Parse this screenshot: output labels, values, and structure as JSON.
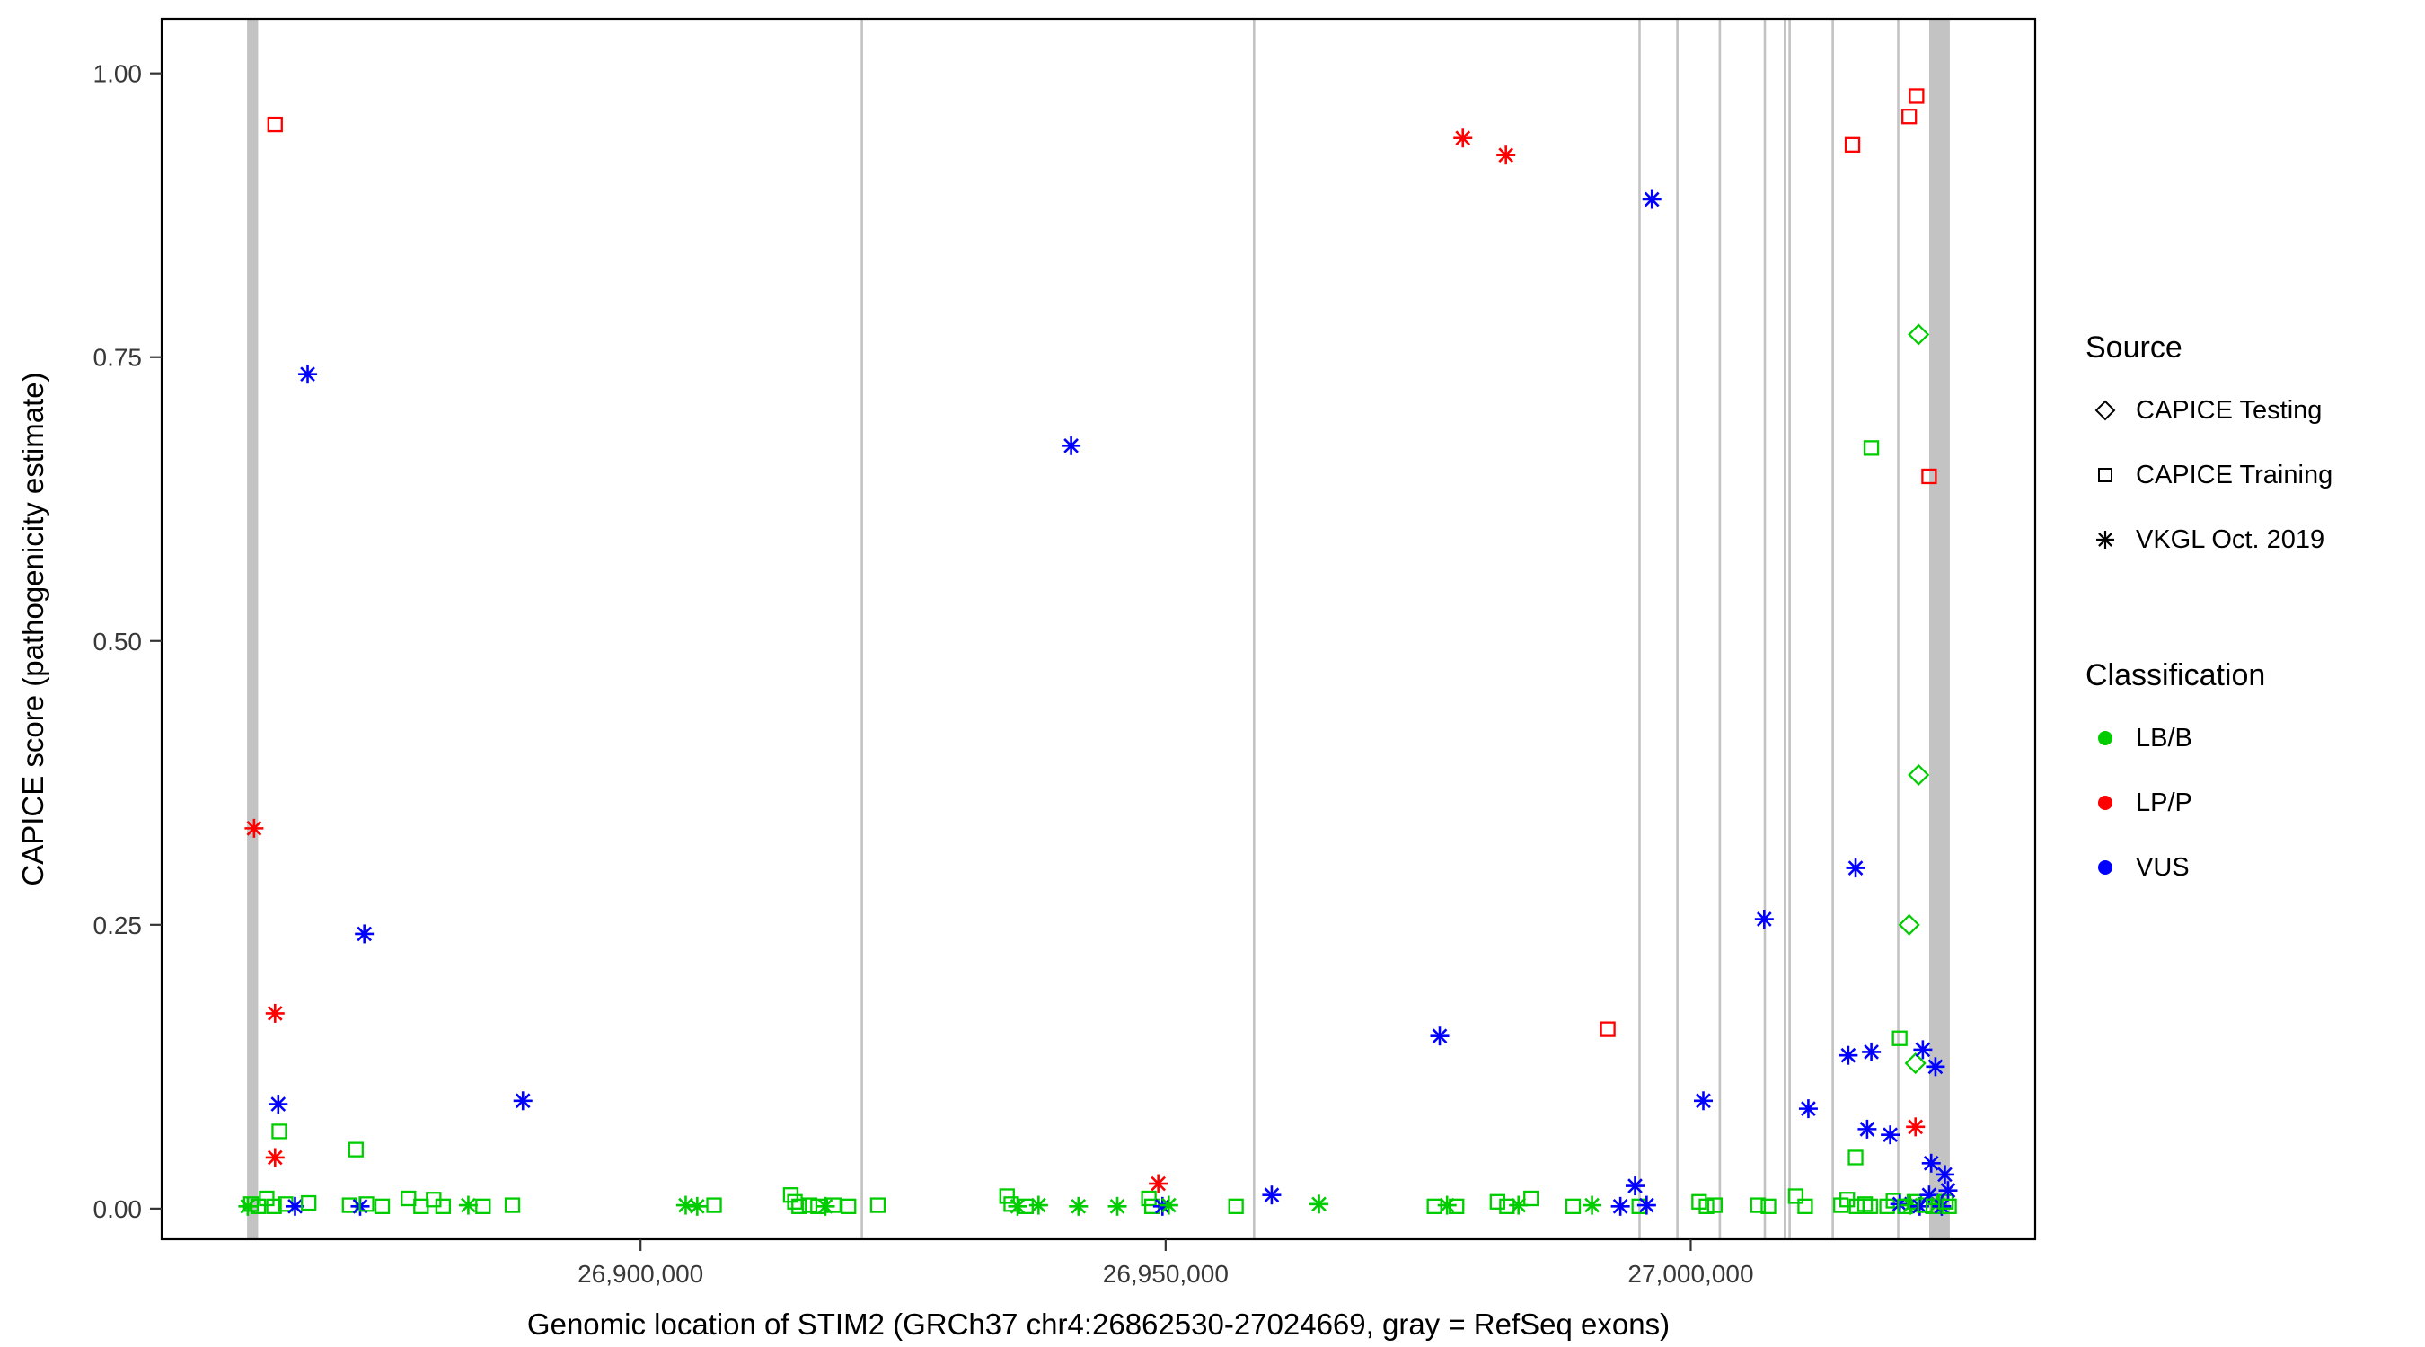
{
  "legend": {
    "source_title": "Source",
    "classification_title": "Classification"
  },
  "chart_data": {
    "type": "scatter",
    "title": "",
    "xlabel": "Genomic location of STIM2 (GRCh37 chr4:26862530-27024669, gray = RefSeq exons)",
    "ylabel": "CAPICE score (pathogenicity estimate)",
    "xlim": [
      26854400,
      27032800
    ],
    "ylim": [
      -0.027,
      1.048
    ],
    "grid": false,
    "legend_position": "right",
    "x_ticks": [
      {
        "value": 26900000,
        "label": "26,900,000"
      },
      {
        "value": 26950000,
        "label": "26,950,000"
      },
      {
        "value": 27000000,
        "label": "27,000,000"
      }
    ],
    "y_ticks": [
      {
        "value": 0.0,
        "label": "0.00"
      },
      {
        "value": 0.25,
        "label": "0.25"
      },
      {
        "value": 0.5,
        "label": "0.50"
      },
      {
        "value": 0.75,
        "label": "0.75"
      },
      {
        "value": 1.0,
        "label": "1.00"
      }
    ],
    "exon_color": "#c3c3c3",
    "frame_color": "#000000",
    "exons": [
      [
        26862530,
        26863584
      ],
      [
        26920960,
        26921160
      ],
      [
        26958310,
        26958450
      ],
      [
        26995020,
        26995130
      ],
      [
        26998615,
        26998725
      ],
      [
        27002660,
        27002795
      ],
      [
        27006945,
        27007050
      ],
      [
        27008850,
        27009000
      ],
      [
        27009310,
        27009430
      ],
      [
        27013415,
        27013590
      ],
      [
        27019645,
        27019780
      ],
      [
        27022710,
        27024669
      ]
    ],
    "sources": [
      {
        "key": "testing",
        "label": "CAPICE Testing",
        "shape": "diamond"
      },
      {
        "key": "training",
        "label": "CAPICE Training",
        "shape": "square"
      },
      {
        "key": "vkgl",
        "label": "VKGL Oct. 2019",
        "shape": "asterisk"
      }
    ],
    "classifications": [
      {
        "key": "LB/B",
        "label": "LB/B",
        "color": "#00CD00"
      },
      {
        "key": "LP/P",
        "label": "LP/P",
        "color": "#FF0000"
      },
      {
        "key": "VUS",
        "label": "VUS",
        "color": "#0000FF"
      }
    ],
    "points": [
      [
        26865200,
        0.955,
        "training",
        "LP/P"
      ],
      [
        26868300,
        0.735,
        "vkgl",
        "VUS"
      ],
      [
        26863200,
        0.335,
        "vkgl",
        "LP/P"
      ],
      [
        26865200,
        0.172,
        "vkgl",
        "LP/P"
      ],
      [
        26865200,
        0.045,
        "vkgl",
        "LP/P"
      ],
      [
        26865500,
        0.092,
        "vkgl",
        "VUS"
      ],
      [
        26865600,
        0.068,
        "training",
        "LB/B"
      ],
      [
        26872900,
        0.052,
        "training",
        "LB/B"
      ],
      [
        26873700,
        0.242,
        "vkgl",
        "VUS"
      ],
      [
        26888800,
        0.095,
        "vkgl",
        "VUS"
      ],
      [
        26941000,
        0.672,
        "vkgl",
        "VUS"
      ],
      [
        26976100,
        0.152,
        "vkgl",
        "VUS"
      ],
      [
        26978300,
        0.943,
        "vkgl",
        "LP/P"
      ],
      [
        26982400,
        0.928,
        "vkgl",
        "LP/P"
      ],
      [
        26992100,
        0.158,
        "training",
        "LP/P"
      ],
      [
        26996300,
        0.889,
        "vkgl",
        "VUS"
      ],
      [
        27001200,
        0.095,
        "vkgl",
        "VUS"
      ],
      [
        27007000,
        0.255,
        "vkgl",
        "VUS"
      ],
      [
        27011200,
        0.088,
        "vkgl",
        "VUS"
      ],
      [
        27015000,
        0.135,
        "vkgl",
        "VUS"
      ],
      [
        27015400,
        0.937,
        "training",
        "LP/P"
      ],
      [
        27015700,
        0.3,
        "vkgl",
        "VUS"
      ],
      [
        27015700,
        0.045,
        "training",
        "LB/B"
      ],
      [
        27016800,
        0.07,
        "vkgl",
        "VUS"
      ],
      [
        27017200,
        0.67,
        "training",
        "LB/B"
      ],
      [
        27017200,
        0.138,
        "vkgl",
        "VUS"
      ],
      [
        27019000,
        0.065,
        "vkgl",
        "VUS"
      ],
      [
        27019900,
        0.15,
        "training",
        "LB/B"
      ],
      [
        27020800,
        0.962,
        "training",
        "LP/P"
      ],
      [
        27020800,
        0.25,
        "testing",
        "LB/B"
      ],
      [
        27021400,
        0.128,
        "testing",
        "LB/B"
      ],
      [
        27021400,
        0.072,
        "vkgl",
        "LP/P"
      ],
      [
        27021500,
        0.98,
        "training",
        "LP/P"
      ],
      [
        27021700,
        0.77,
        "testing",
        "LB/B"
      ],
      [
        27021700,
        0.382,
        "testing",
        "LB/B"
      ],
      [
        27022100,
        0.14,
        "vkgl",
        "VUS"
      ],
      [
        27022700,
        0.645,
        "training",
        "LP/P"
      ],
      [
        27022900,
        0.04,
        "vkgl",
        "VUS"
      ],
      [
        27023300,
        0.125,
        "vkgl",
        "VUS"
      ],
      [
        26862600,
        0.002,
        "vkgl",
        "LB/B"
      ],
      [
        26862900,
        0.004,
        "training",
        "LB/B"
      ],
      [
        26863600,
        0.002,
        "training",
        "LB/B"
      ],
      [
        26864400,
        0.009,
        "training",
        "LB/B"
      ],
      [
        26865100,
        0.002,
        "training",
        "LB/B"
      ],
      [
        26866200,
        0.004,
        "training",
        "LB/B"
      ],
      [
        26867100,
        0.002,
        "vkgl",
        "VUS"
      ],
      [
        26868400,
        0.005,
        "training",
        "LB/B"
      ],
      [
        26872300,
        0.003,
        "training",
        "LB/B"
      ],
      [
        26873300,
        0.002,
        "vkgl",
        "VUS"
      ],
      [
        26873900,
        0.004,
        "training",
        "LB/B"
      ],
      [
        26875400,
        0.002,
        "training",
        "LB/B"
      ],
      [
        26877900,
        0.009,
        "training",
        "LB/B"
      ],
      [
        26879100,
        0.002,
        "training",
        "LB/B"
      ],
      [
        26880300,
        0.008,
        "training",
        "LB/B"
      ],
      [
        26881200,
        0.002,
        "training",
        "LB/B"
      ],
      [
        26883600,
        0.003,
        "vkgl",
        "LB/B"
      ],
      [
        26885000,
        0.002,
        "training",
        "LB/B"
      ],
      [
        26887800,
        0.003,
        "training",
        "LB/B"
      ],
      [
        26904300,
        0.003,
        "vkgl",
        "LB/B"
      ],
      [
        26905400,
        0.002,
        "vkgl",
        "LB/B"
      ],
      [
        26907000,
        0.003,
        "training",
        "LB/B"
      ],
      [
        26914300,
        0.012,
        "training",
        "LB/B"
      ],
      [
        26914700,
        0.006,
        "training",
        "LB/B"
      ],
      [
        26915100,
        0.002,
        "training",
        "LB/B"
      ],
      [
        26916100,
        0.003,
        "training",
        "LB/B"
      ],
      [
        26916900,
        0.002,
        "training",
        "LB/B"
      ],
      [
        26917600,
        0.002,
        "vkgl",
        "LB/B"
      ],
      [
        26918400,
        0.003,
        "training",
        "LB/B"
      ],
      [
        26919800,
        0.002,
        "training",
        "LB/B"
      ],
      [
        26922600,
        0.003,
        "training",
        "LB/B"
      ],
      [
        26934900,
        0.011,
        "training",
        "LB/B"
      ],
      [
        26935300,
        0.004,
        "training",
        "LB/B"
      ],
      [
        26935900,
        0.002,
        "vkgl",
        "LB/B"
      ],
      [
        26936700,
        0.002,
        "training",
        "LB/B"
      ],
      [
        26937900,
        0.003,
        "vkgl",
        "LB/B"
      ],
      [
        26941700,
        0.002,
        "vkgl",
        "LB/B"
      ],
      [
        26945400,
        0.002,
        "vkgl",
        "LB/B"
      ],
      [
        26948400,
        0.009,
        "training",
        "LB/B"
      ],
      [
        26948700,
        0.002,
        "training",
        "LB/B"
      ],
      [
        26949300,
        0.022,
        "vkgl",
        "LP/P"
      ],
      [
        26949700,
        0.002,
        "vkgl",
        "VUS"
      ],
      [
        26950300,
        0.003,
        "vkgl",
        "LB/B"
      ],
      [
        26956700,
        0.002,
        "training",
        "LB/B"
      ],
      [
        26960100,
        0.012,
        "vkgl",
        "VUS"
      ],
      [
        26964600,
        0.004,
        "vkgl",
        "LB/B"
      ],
      [
        26975600,
        0.002,
        "training",
        "LB/B"
      ],
      [
        26976800,
        0.003,
        "vkgl",
        "LB/B"
      ],
      [
        26977700,
        0.002,
        "training",
        "LB/B"
      ],
      [
        26981600,
        0.006,
        "training",
        "LB/B"
      ],
      [
        26982500,
        0.002,
        "training",
        "LB/B"
      ],
      [
        26983600,
        0.003,
        "vkgl",
        "LB/B"
      ],
      [
        26984800,
        0.009,
        "training",
        "LB/B"
      ],
      [
        26988800,
        0.002,
        "training",
        "LB/B"
      ],
      [
        26990600,
        0.003,
        "vkgl",
        "LB/B"
      ],
      [
        26993300,
        0.002,
        "vkgl",
        "VUS"
      ],
      [
        26994700,
        0.02,
        "vkgl",
        "VUS"
      ],
      [
        26995100,
        0.002,
        "training",
        "LB/B"
      ],
      [
        26995800,
        0.003,
        "vkgl",
        "VUS"
      ],
      [
        27000800,
        0.006,
        "training",
        "LB/B"
      ],
      [
        27001500,
        0.002,
        "training",
        "LB/B"
      ],
      [
        27002300,
        0.003,
        "training",
        "LB/B"
      ],
      [
        27006400,
        0.003,
        "training",
        "LB/B"
      ],
      [
        27007400,
        0.002,
        "training",
        "LB/B"
      ],
      [
        27010000,
        0.011,
        "training",
        "LB/B"
      ],
      [
        27010900,
        0.002,
        "training",
        "LB/B"
      ],
      [
        27014300,
        0.003,
        "training",
        "LB/B"
      ],
      [
        27014900,
        0.008,
        "training",
        "LB/B"
      ],
      [
        27015800,
        0.002,
        "training",
        "LB/B"
      ],
      [
        27016600,
        0.004,
        "training",
        "LB/B"
      ],
      [
        27017100,
        0.002,
        "training",
        "LB/B"
      ],
      [
        27018700,
        0.002,
        "training",
        "LB/B"
      ],
      [
        27019300,
        0.007,
        "training",
        "LB/B"
      ],
      [
        27019900,
        0.004,
        "vkgl",
        "VUS"
      ],
      [
        27020400,
        0.002,
        "training",
        "LB/B"
      ],
      [
        27020900,
        0.003,
        "vkgl",
        "LB/B"
      ],
      [
        27021300,
        0.006,
        "training",
        "LB/B"
      ],
      [
        27021800,
        0.002,
        "vkgl",
        "VUS"
      ],
      [
        27022300,
        0.003,
        "training",
        "LB/B"
      ],
      [
        27022700,
        0.012,
        "vkgl",
        "VUS"
      ],
      [
        27023100,
        0.002,
        "training",
        "LB/B"
      ],
      [
        27023500,
        0.004,
        "vkgl",
        "LB/B"
      ],
      [
        27023900,
        0.002,
        "vkgl",
        "VUS"
      ],
      [
        27024200,
        0.03,
        "vkgl",
        "VUS"
      ],
      [
        27024300,
        0.006,
        "training",
        "LB/B"
      ],
      [
        27024500,
        0.016,
        "vkgl",
        "VUS"
      ],
      [
        27024600,
        0.002,
        "training",
        "LB/B"
      ]
    ]
  }
}
